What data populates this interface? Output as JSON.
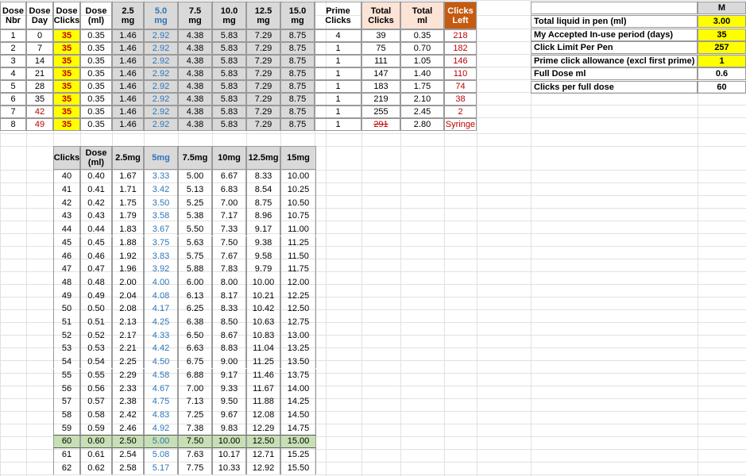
{
  "top_table": {
    "headers": [
      [
        "Dose",
        "Nbr"
      ],
      [
        "Dose",
        "Day"
      ],
      [
        "Dose",
        "Clicks"
      ],
      [
        "Dose",
        "(ml)"
      ],
      [
        "2.5",
        "mg"
      ],
      [
        "5.0",
        "mg"
      ],
      [
        "7.5",
        "mg"
      ],
      [
        "10.0",
        "mg"
      ],
      [
        "12.5",
        "mg"
      ],
      [
        "15.0",
        "mg"
      ],
      [
        "Prime",
        "Clicks"
      ],
      [
        "Total",
        "Clicks"
      ],
      [
        "Total",
        "ml"
      ],
      [
        "Clicks",
        "Left"
      ]
    ],
    "rows": [
      [
        "1",
        "0",
        "35",
        "0.35",
        "1.46",
        "2.92",
        "4.38",
        "5.83",
        "7.29",
        "8.75",
        "4",
        "39",
        "0.35",
        "218"
      ],
      [
        "2",
        "7",
        "35",
        "0.35",
        "1.46",
        "2.92",
        "4.38",
        "5.83",
        "7.29",
        "8.75",
        "1",
        "75",
        "0.70",
        "182"
      ],
      [
        "3",
        "14",
        "35",
        "0.35",
        "1.46",
        "2.92",
        "4.38",
        "5.83",
        "7.29",
        "8.75",
        "1",
        "111",
        "1.05",
        "146"
      ],
      [
        "4",
        "21",
        "35",
        "0.35",
        "1.46",
        "2.92",
        "4.38",
        "5.83",
        "7.29",
        "8.75",
        "1",
        "147",
        "1.40",
        "110"
      ],
      [
        "5",
        "28",
        "35",
        "0.35",
        "1.46",
        "2.92",
        "4.38",
        "5.83",
        "7.29",
        "8.75",
        "1",
        "183",
        "1.75",
        "74"
      ],
      [
        "6",
        "35",
        "35",
        "0.35",
        "1.46",
        "2.92",
        "4.38",
        "5.83",
        "7.29",
        "8.75",
        "1",
        "219",
        "2.10",
        "38"
      ],
      [
        "7",
        "42",
        "35",
        "0.35",
        "1.46",
        "2.92",
        "4.38",
        "5.83",
        "7.29",
        "8.75",
        "1",
        "255",
        "2.45",
        "2"
      ],
      [
        "8",
        "49",
        "35",
        "0.35",
        "1.46",
        "2.92",
        "4.38",
        "5.83",
        "7.29",
        "8.75",
        "1",
        "291",
        "2.80",
        "Syringe"
      ]
    ]
  },
  "settings": {
    "column_header": "M",
    "rows": [
      {
        "label": "Total liquid in pen (ml)",
        "value": "3.00"
      },
      {
        "label": "My Accepted In-use period (days)",
        "value": "35"
      },
      {
        "label": "Click Limit Per Pen",
        "value": "257"
      },
      {
        "label": "Prime click allowance (excl first prime)",
        "value": "1"
      },
      {
        "label": "Full Dose ml",
        "value": "0.6"
      },
      {
        "label": "Clicks per full dose",
        "value": "60"
      }
    ]
  },
  "bottom_table": {
    "headers": [
      [
        "Clicks"
      ],
      [
        "Dose",
        "(ml)"
      ],
      [
        "2.5mg"
      ],
      [
        "5mg"
      ],
      [
        "7.5mg"
      ],
      [
        "10mg"
      ],
      [
        "12.5mg"
      ],
      [
        "15mg"
      ]
    ],
    "rows": [
      [
        "40",
        "0.40",
        "1.67",
        "3.33",
        "5.00",
        "6.67",
        "8.33",
        "10.00"
      ],
      [
        "41",
        "0.41",
        "1.71",
        "3.42",
        "5.13",
        "6.83",
        "8.54",
        "10.25"
      ],
      [
        "42",
        "0.42",
        "1.75",
        "3.50",
        "5.25",
        "7.00",
        "8.75",
        "10.50"
      ],
      [
        "43",
        "0.43",
        "1.79",
        "3.58",
        "5.38",
        "7.17",
        "8.96",
        "10.75"
      ],
      [
        "44",
        "0.44",
        "1.83",
        "3.67",
        "5.50",
        "7.33",
        "9.17",
        "11.00"
      ],
      [
        "45",
        "0.45",
        "1.88",
        "3.75",
        "5.63",
        "7.50",
        "9.38",
        "11.25"
      ],
      [
        "46",
        "0.46",
        "1.92",
        "3.83",
        "5.75",
        "7.67",
        "9.58",
        "11.50"
      ],
      [
        "47",
        "0.47",
        "1.96",
        "3.92",
        "5.88",
        "7.83",
        "9.79",
        "11.75"
      ],
      [
        "48",
        "0.48",
        "2.00",
        "4.00",
        "6.00",
        "8.00",
        "10.00",
        "12.00"
      ],
      [
        "49",
        "0.49",
        "2.04",
        "4.08",
        "6.13",
        "8.17",
        "10.21",
        "12.25"
      ],
      [
        "50",
        "0.50",
        "2.08",
        "4.17",
        "6.25",
        "8.33",
        "10.42",
        "12.50"
      ],
      [
        "51",
        "0.51",
        "2.13",
        "4.25",
        "6.38",
        "8.50",
        "10.63",
        "12.75"
      ],
      [
        "52",
        "0.52",
        "2.17",
        "4.33",
        "6.50",
        "8.67",
        "10.83",
        "13.00"
      ],
      [
        "53",
        "0.53",
        "2.21",
        "4.42",
        "6.63",
        "8.83",
        "11.04",
        "13.25"
      ],
      [
        "54",
        "0.54",
        "2.25",
        "4.50",
        "6.75",
        "9.00",
        "11.25",
        "13.50"
      ],
      [
        "55",
        "0.55",
        "2.29",
        "4.58",
        "6.88",
        "9.17",
        "11.46",
        "13.75"
      ],
      [
        "56",
        "0.56",
        "2.33",
        "4.67",
        "7.00",
        "9.33",
        "11.67",
        "14.00"
      ],
      [
        "57",
        "0.57",
        "2.38",
        "4.75",
        "7.13",
        "9.50",
        "11.88",
        "14.25"
      ],
      [
        "58",
        "0.58",
        "2.42",
        "4.83",
        "7.25",
        "9.67",
        "12.08",
        "14.50"
      ],
      [
        "59",
        "0.59",
        "2.46",
        "4.92",
        "7.38",
        "9.83",
        "12.29",
        "14.75"
      ],
      [
        "60",
        "0.60",
        "2.50",
        "5.00",
        "7.50",
        "10.00",
        "12.50",
        "15.00"
      ],
      [
        "61",
        "0.61",
        "2.54",
        "5.08",
        "7.63",
        "10.17",
        "12.71",
        "15.25"
      ],
      [
        "62",
        "0.62",
        "2.58",
        "5.17",
        "7.75",
        "10.33",
        "12.92",
        "15.50"
      ]
    ]
  },
  "colors": {
    "yellow": "#ffff00",
    "gray": "#d9d9d9",
    "peach": "#fbe3d6",
    "orange": "#c55a11",
    "green": "#c6e0b4",
    "blue": "#2e75b6",
    "red": "#c00000"
  }
}
